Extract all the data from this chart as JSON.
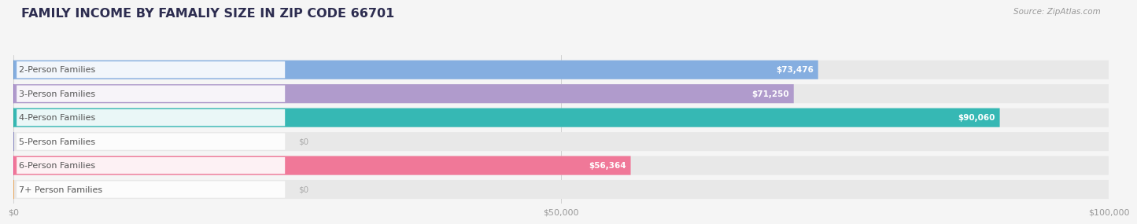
{
  "title": "FAMILY INCOME BY FAMALIY SIZE IN ZIP CODE 66701",
  "source": "Source: ZipAtlas.com",
  "categories": [
    "2-Person Families",
    "3-Person Families",
    "4-Person Families",
    "5-Person Families",
    "6-Person Families",
    "7+ Person Families"
  ],
  "values": [
    73476,
    71250,
    90060,
    0,
    56364,
    0
  ],
  "bar_colors": [
    "#85aee0",
    "#b09bcc",
    "#36b8b4",
    "#aaaad8",
    "#f07898",
    "#f5c890"
  ],
  "dot_colors": [
    "#6090c8",
    "#9070bb",
    "#20a89a",
    "#8888c0",
    "#e84888",
    "#e8a860"
  ],
  "value_labels": [
    "$73,476",
    "$71,250",
    "$90,060",
    "$0",
    "$56,364",
    "$0"
  ],
  "xlim": [
    0,
    100000
  ],
  "xticklabels": [
    "$0",
    "$50,000",
    "$100,000"
  ],
  "background_color": "#f5f5f5",
  "bar_bg_color": "#e8e8e8",
  "title_color": "#2d2d50",
  "source_color": "#999999",
  "label_text_color": "#555555",
  "value_inside_color": "#ffffff",
  "value_outside_color": "#aaaaaa"
}
